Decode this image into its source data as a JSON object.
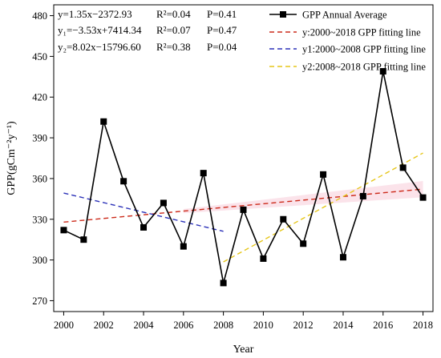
{
  "chart_data": {
    "type": "line",
    "xlabel": "Year",
    "ylabel": "GPP(gCm⁻²y⁻¹)",
    "xlim": [
      1999.5,
      2018.5
    ],
    "ylim": [
      262,
      488
    ],
    "x_ticks": [
      2000,
      2002,
      2004,
      2006,
      2008,
      2010,
      2012,
      2014,
      2016,
      2018
    ],
    "y_ticks": [
      270,
      300,
      330,
      360,
      390,
      420,
      450,
      480
    ],
    "grid": false,
    "legend_position": "top-right",
    "series": [
      {
        "name": "GPP Annual Average",
        "color": "#000000",
        "style": "solid-line-square-markers",
        "x": [
          2000,
          2001,
          2002,
          2003,
          2004,
          2005,
          2006,
          2007,
          2008,
          2009,
          2010,
          2011,
          2012,
          2013,
          2014,
          2015,
          2016,
          2017,
          2018
        ],
        "y": [
          322,
          315,
          402,
          358,
          324,
          342,
          310,
          364,
          283,
          337,
          301,
          330,
          312,
          363,
          302,
          347,
          439,
          368,
          346
        ]
      },
      {
        "name": "y:2000~2018 GPP fitting line",
        "color": "#cc2a1a",
        "style": "dashed",
        "x": [
          2000,
          2018
        ],
        "y": [
          327.9,
          352.2
        ]
      },
      {
        "name": "y1:2000~2008 GPP fitting line",
        "color": "#2b31b8",
        "style": "dashed",
        "x": [
          2000,
          2008
        ],
        "y": [
          349.3,
          321.1
        ]
      },
      {
        "name": "y2:2008~2018 GPP fitting line",
        "color": "#e6c619",
        "style": "dashed",
        "x": [
          2008,
          2018
        ],
        "y": [
          298.6,
          378.8
        ]
      }
    ],
    "equations": [
      {
        "eq": "y=1.35x−2372.93",
        "r2": "R²=0.04",
        "p": "P=0.41"
      },
      {
        "eq": "y₁=−3.53x+7414.34",
        "r2": "R²=0.07",
        "p": "P=0.47"
      },
      {
        "eq": "y₂=8.02x−15796.60",
        "r2": "R²=0.38",
        "p": "P=0.04"
      }
    ]
  }
}
